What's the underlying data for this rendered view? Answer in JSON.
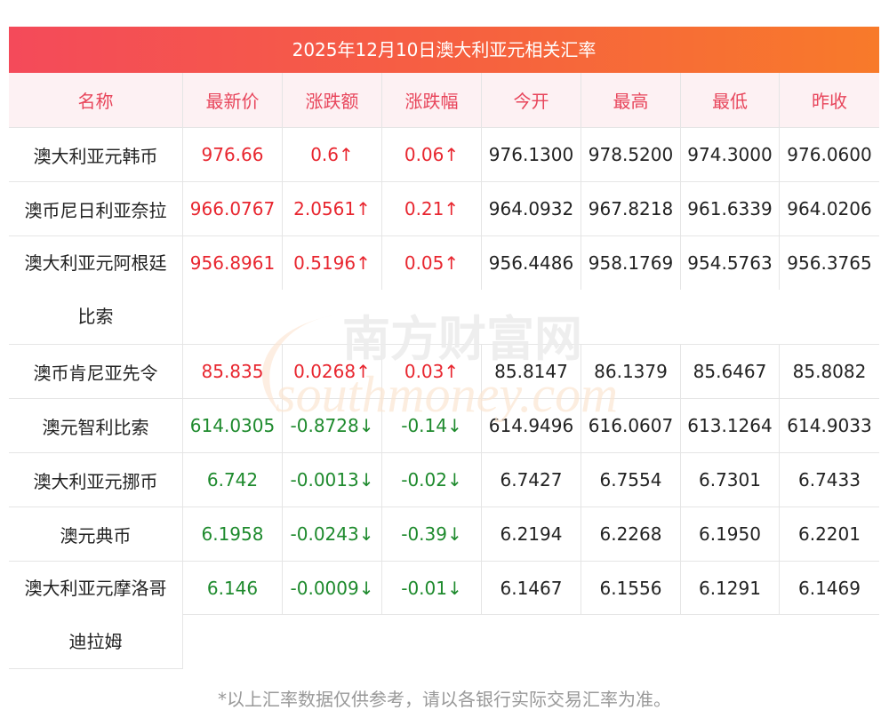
{
  "title": "2025年12月10日澳大利亚元相关汇率",
  "headers": [
    "名称",
    "最新价",
    "涨跌额",
    "涨跌幅",
    "今开",
    "最高",
    "最低",
    "昨收"
  ],
  "rows": [
    {
      "name": "澳大利亚元韩币",
      "price": "976.66",
      "change": "0.6↑",
      "pct": "0.06↑",
      "open": "976.1300",
      "high": "978.5200",
      "low": "974.3000",
      "prev": "976.0600",
      "dir": "up"
    },
    {
      "name": "澳币尼日利亚奈拉",
      "price": "966.0767",
      "change": "2.0561↑",
      "pct": "0.21↑",
      "open": "964.0932",
      "high": "967.8218",
      "low": "961.6339",
      "prev": "964.0206",
      "dir": "up"
    },
    {
      "name": "澳大利亚元阿根廷比索",
      "price": "956.8961",
      "change": "0.5196↑",
      "pct": "0.05↑",
      "open": "956.4486",
      "high": "958.1769",
      "low": "954.5763",
      "prev": "956.3765",
      "dir": "up"
    },
    {
      "name": "澳币肯尼亚先令",
      "price": "85.835",
      "change": "0.0268↑",
      "pct": "0.03↑",
      "open": "85.8147",
      "high": "86.1379",
      "low": "85.6467",
      "prev": "85.8082",
      "dir": "up"
    },
    {
      "name": "澳元智利比索",
      "price": "614.0305",
      "change": "-0.8728↓",
      "pct": "-0.14↓",
      "open": "614.9496",
      "high": "616.0607",
      "low": "613.1264",
      "prev": "614.9033",
      "dir": "down"
    },
    {
      "name": "澳大利亚元挪币",
      "price": "6.742",
      "change": "-0.0013↓",
      "pct": "-0.02↓",
      "open": "6.7427",
      "high": "6.7554",
      "low": "6.7301",
      "prev": "6.7433",
      "dir": "down"
    },
    {
      "name": "澳元典币",
      "price": "6.1958",
      "change": "-0.0243↓",
      "pct": "-0.39↓",
      "open": "6.2194",
      "high": "6.2268",
      "low": "6.1950",
      "prev": "6.2201",
      "dir": "down"
    },
    {
      "name": "澳大利亚元摩洛哥迪拉姆",
      "price": "6.146",
      "change": "-0.0009↓",
      "pct": "-0.01↓",
      "open": "6.1467",
      "high": "6.1556",
      "low": "6.1291",
      "prev": "6.1469",
      "dir": "down"
    }
  ],
  "footnote": "*以上汇率数据仅供参考，请以各银行实际交易汇率为准。",
  "watermark": {
    "cn": "南方财富网",
    "en": "southmoney.com"
  },
  "colors": {
    "up": "#e8262f",
    "down": "#1e8a2d",
    "header_text": "#e8455b",
    "title_bg_start": "#f44a5a",
    "title_bg_end": "#f87a2a"
  }
}
